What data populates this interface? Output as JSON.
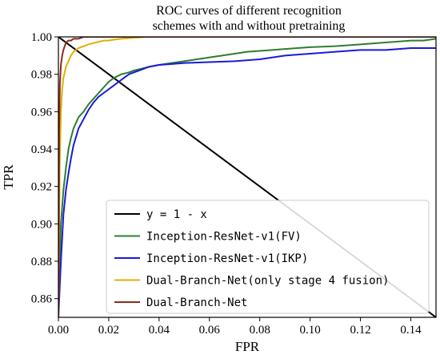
{
  "chart_data": {
    "type": "line",
    "title": [
      "ROC curves of different recognition",
      "schemes with and without pretraining"
    ],
    "xlabel": "FPR",
    "ylabel": "TPR",
    "xlim": [
      0.0,
      0.15
    ],
    "ylim": [
      0.85,
      1.0
    ],
    "xticks": [
      {
        "value": 0.0,
        "label": "0.00"
      },
      {
        "value": 0.02,
        "label": "0.02"
      },
      {
        "value": 0.04,
        "label": "0.04"
      },
      {
        "value": 0.06,
        "label": "0.06"
      },
      {
        "value": 0.08,
        "label": "0.08"
      },
      {
        "value": 0.1,
        "label": "0.10"
      },
      {
        "value": 0.12,
        "label": "0.12"
      },
      {
        "value": 0.14,
        "label": "0.14"
      }
    ],
    "yticks": [
      {
        "value": 0.86,
        "label": "0.86"
      },
      {
        "value": 0.88,
        "label": "0.88"
      },
      {
        "value": 0.9,
        "label": "0.90"
      },
      {
        "value": 0.92,
        "label": "0.92"
      },
      {
        "value": 0.94,
        "label": "0.94"
      },
      {
        "value": 0.96,
        "label": "0.96"
      },
      {
        "value": 0.98,
        "label": "0.98"
      },
      {
        "value": 1.0,
        "label": "1.00"
      }
    ],
    "legend_position": "lower-right",
    "grid": false,
    "series": [
      {
        "name": "y = 1 - x",
        "color": "#000000",
        "x": [
          0.0,
          0.15
        ],
        "y": [
          1.0,
          0.85
        ]
      },
      {
        "name": "Inception-ResNet-v1(FV)",
        "color": "#2e7d32",
        "x": [
          0.0,
          0.0005,
          0.001,
          0.002,
          0.003,
          0.004,
          0.005,
          0.006,
          0.008,
          0.01,
          0.012,
          0.014,
          0.016,
          0.018,
          0.02,
          0.022,
          0.025,
          0.028,
          0.03,
          0.033,
          0.036,
          0.04,
          0.045,
          0.05,
          0.055,
          0.06,
          0.065,
          0.07,
          0.075,
          0.08,
          0.085,
          0.09,
          0.095,
          0.1,
          0.11,
          0.12,
          0.13,
          0.14,
          0.145,
          0.15
        ],
        "y": [
          0.85,
          0.878,
          0.9,
          0.918,
          0.93,
          0.94,
          0.946,
          0.951,
          0.957,
          0.96,
          0.964,
          0.967,
          0.97,
          0.973,
          0.976,
          0.978,
          0.98,
          0.981,
          0.982,
          0.983,
          0.984,
          0.985,
          0.986,
          0.987,
          0.988,
          0.989,
          0.99,
          0.991,
          0.992,
          0.9925,
          0.993,
          0.9935,
          0.994,
          0.9945,
          0.995,
          0.996,
          0.997,
          0.998,
          0.998,
          0.999
        ]
      },
      {
        "name": "Inception-ResNet-v1(IKP)",
        "color": "#1a1adb",
        "x": [
          0.0,
          0.001,
          0.002,
          0.003,
          0.004,
          0.005,
          0.006,
          0.008,
          0.01,
          0.012,
          0.014,
          0.016,
          0.018,
          0.02,
          0.022,
          0.024,
          0.026,
          0.028,
          0.03,
          0.032,
          0.034,
          0.036,
          0.038,
          0.04,
          0.045,
          0.05,
          0.06,
          0.07,
          0.08,
          0.09,
          0.1,
          0.11,
          0.12,
          0.13,
          0.14,
          0.15
        ],
        "y": [
          0.85,
          0.88,
          0.905,
          0.918,
          0.927,
          0.935,
          0.942,
          0.951,
          0.956,
          0.961,
          0.965,
          0.968,
          0.97,
          0.972,
          0.974,
          0.976,
          0.978,
          0.98,
          0.981,
          0.982,
          0.983,
          0.984,
          0.9845,
          0.985,
          0.9855,
          0.986,
          0.9865,
          0.987,
          0.988,
          0.99,
          0.991,
          0.992,
          0.993,
          0.993,
          0.994,
          0.994
        ]
      },
      {
        "name": "Dual-Branch-Net(only stage 4 fusion)",
        "color": "#e0b000",
        "x": [
          0.0,
          0.0005,
          0.001,
          0.0015,
          0.002,
          0.003,
          0.004,
          0.005,
          0.006,
          0.008,
          0.01,
          0.012,
          0.015,
          0.018,
          0.02,
          0.022,
          0.025,
          0.028,
          0.03,
          0.032,
          0.035,
          0.04,
          0.05,
          0.15
        ],
        "y": [
          0.85,
          0.93,
          0.96,
          0.972,
          0.978,
          0.984,
          0.987,
          0.99,
          0.992,
          0.994,
          0.995,
          0.996,
          0.997,
          0.998,
          0.998,
          0.9985,
          0.999,
          0.9993,
          0.9995,
          0.9997,
          1.0,
          1.0,
          1.0,
          1.0
        ]
      },
      {
        "name": "Dual-Branch-Net",
        "color": "#8b2c1a",
        "x": [
          0.0,
          0.0003,
          0.0006,
          0.001,
          0.0015,
          0.002,
          0.0025,
          0.003,
          0.004,
          0.005,
          0.006,
          0.008,
          0.01,
          0.012,
          0.015,
          0.02,
          0.15
        ],
        "y": [
          0.85,
          0.95,
          0.975,
          0.985,
          0.99,
          0.993,
          0.995,
          0.997,
          0.998,
          0.998,
          0.999,
          0.999,
          1.0,
          1.0,
          1.0,
          1.0,
          1.0
        ]
      }
    ]
  }
}
